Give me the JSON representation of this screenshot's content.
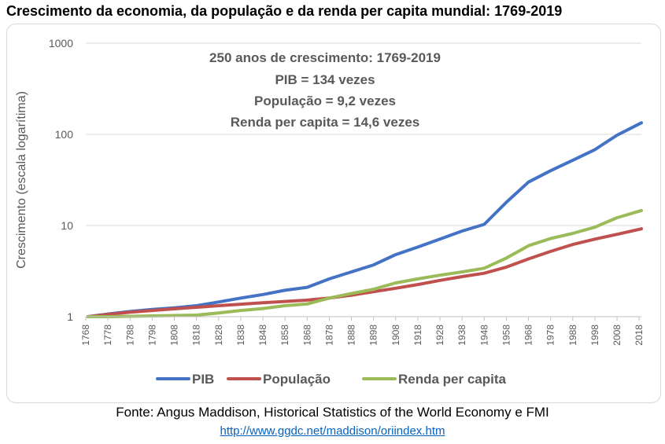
{
  "page": {
    "title": "Crescimento da economia, da população e da renda per capita mundial: 1769-2019",
    "source": "Fonte: Angus Maddison, Historical Statistics of the World Economy e FMI",
    "source_link": "http://www.ggdc.net/maddison/oriindex.htm"
  },
  "chart_data": {
    "type": "line",
    "title": "Crescimento da economia, da população e da renda per capita mundial: 1769-2019",
    "ylabel": "Crescimento (escala logarítima)",
    "xlabel": "",
    "y_scale": "log",
    "ylim": [
      1,
      1000
    ],
    "xlim": [
      1768,
      2019
    ],
    "y_ticks": [
      1,
      10,
      100,
      1000
    ],
    "y_tick_labels": [
      "1",
      "10",
      "100",
      "1000"
    ],
    "x_ticks": [
      1768,
      1778,
      1788,
      1798,
      1808,
      1818,
      1828,
      1838,
      1848,
      1858,
      1868,
      1878,
      1888,
      1898,
      1908,
      1918,
      1928,
      1938,
      1948,
      1958,
      1968,
      1978,
      1988,
      1998,
      2008,
      2018
    ],
    "x_tick_labels": [
      "1768",
      "1778",
      "1788",
      "1798",
      "1808",
      "1818",
      "1828",
      "1838",
      "1848",
      "1858",
      "1868",
      "1878",
      "1888",
      "1898",
      "1908",
      "1918",
      "1928",
      "1938",
      "1948",
      "1958",
      "1968",
      "1978",
      "1988",
      "1998",
      "2008",
      "2018"
    ],
    "grid": {
      "horizontal": true,
      "vertical": false
    },
    "legend_position": "bottom",
    "annotations": [
      "250 anos de crescimento: 1769-2019",
      "PIB = 134 vezes",
      "População = 9,2 vezes",
      "Renda per capita = 14,6 vezes"
    ],
    "series": [
      {
        "name": "PIB",
        "color": "#4472c4",
        "x": [
          1769,
          1778,
          1788,
          1798,
          1808,
          1818,
          1828,
          1838,
          1848,
          1858,
          1868,
          1878,
          1888,
          1898,
          1908,
          1918,
          1928,
          1938,
          1948,
          1958,
          1968,
          1978,
          1988,
          1998,
          2008,
          2019
        ],
        "y": [
          1,
          1.07,
          1.14,
          1.2,
          1.25,
          1.32,
          1.45,
          1.6,
          1.75,
          1.95,
          2.1,
          2.6,
          3.1,
          3.7,
          4.8,
          5.8,
          7.1,
          8.7,
          10.3,
          18,
          30,
          40,
          52,
          68,
          98,
          134
        ]
      },
      {
        "name": "População",
        "color": "#c0504d",
        "x": [
          1769,
          1778,
          1788,
          1798,
          1808,
          1818,
          1828,
          1838,
          1848,
          1858,
          1868,
          1878,
          1888,
          1898,
          1908,
          1918,
          1928,
          1938,
          1948,
          1958,
          1968,
          1978,
          1988,
          1998,
          2008,
          2019
        ],
        "y": [
          1,
          1.06,
          1.12,
          1.17,
          1.22,
          1.27,
          1.32,
          1.37,
          1.42,
          1.47,
          1.52,
          1.6,
          1.72,
          1.88,
          2.05,
          2.25,
          2.5,
          2.75,
          3.0,
          3.5,
          4.3,
          5.2,
          6.2,
          7.1,
          8.0,
          9.2
        ]
      },
      {
        "name": "Renda per capita",
        "color": "#9bbb59",
        "x": [
          1769,
          1778,
          1788,
          1798,
          1808,
          1818,
          1828,
          1838,
          1848,
          1858,
          1868,
          1878,
          1888,
          1898,
          1908,
          1918,
          1928,
          1938,
          1948,
          1958,
          1968,
          1978,
          1988,
          1998,
          2008,
          2019
        ],
        "y": [
          1,
          1.0,
          1.01,
          1.02,
          1.03,
          1.04,
          1.1,
          1.17,
          1.23,
          1.32,
          1.38,
          1.6,
          1.8,
          2.0,
          2.35,
          2.6,
          2.85,
          3.1,
          3.4,
          4.4,
          6.0,
          7.2,
          8.2,
          9.6,
          12.2,
          14.6
        ]
      }
    ]
  }
}
